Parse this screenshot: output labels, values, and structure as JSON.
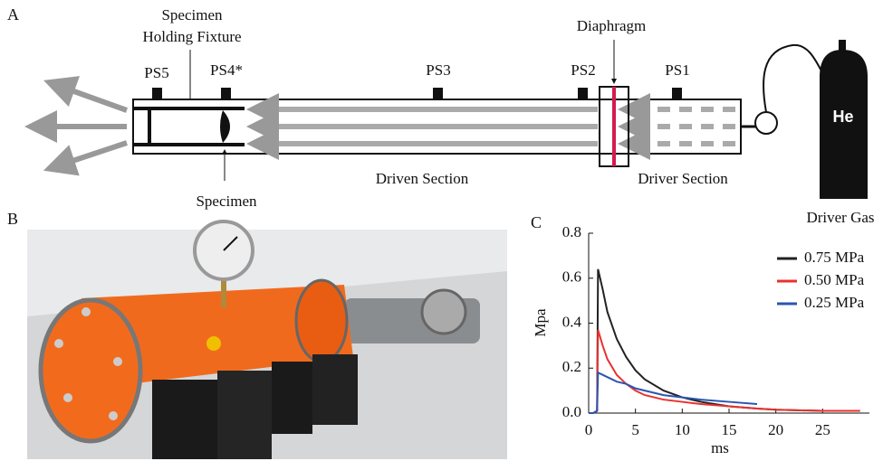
{
  "panel_a": {
    "label": "A",
    "fixture_label": [
      "Specimen",
      "Holding Fixture"
    ],
    "sensors": [
      "PS5",
      "PS4*",
      "PS3",
      "PS2",
      "PS1"
    ],
    "diaphragm": "Diaphragm",
    "specimen": "Specimen",
    "driven_section": "Driven Section",
    "driver_section": "Driver Section",
    "gas": "He",
    "driver_gas": "Driver Gas"
  },
  "panel_b": {
    "label": "B"
  },
  "chart_data": {
    "type": "line",
    "panel_label": "C",
    "x_label": "ms",
    "y_label": "Mpa",
    "x": [
      0,
      0.5,
      0.9,
      1,
      1.5,
      2,
      3,
      4,
      5,
      6,
      8,
      10,
      12,
      15,
      18,
      20,
      25,
      29
    ],
    "series": [
      {
        "name": "0.75 MPa",
        "color": "#222222",
        "values": [
          0,
          0,
          0.01,
          0.64,
          0.55,
          0.45,
          0.33,
          0.25,
          0.19,
          0.15,
          0.1,
          0.07,
          0.05,
          0.03,
          0.02,
          0.015,
          0.01,
          0.01
        ]
      },
      {
        "name": "0.50 MPa",
        "color": "#e8322f",
        "values": [
          0,
          0,
          0.01,
          0.37,
          0.3,
          0.24,
          0.17,
          0.13,
          0.1,
          0.08,
          0.06,
          0.05,
          0.04,
          0.03,
          0.02,
          0.015,
          0.01,
          0.01
        ]
      },
      {
        "name": "0.25 MPa",
        "color": "#2b55b0",
        "values": [
          0,
          0,
          0.01,
          0.18,
          0.17,
          0.16,
          0.14,
          0.13,
          0.11,
          0.1,
          0.08,
          0.07,
          0.06,
          0.05,
          0.04,
          null,
          null,
          null
        ]
      }
    ],
    "xlim": [
      0,
      30
    ],
    "xticks": [
      0,
      5,
      10,
      15,
      20,
      25
    ],
    "ylim": [
      0,
      0.8
    ],
    "yticks": [
      {
        "value": 0,
        "label": "0.0"
      },
      {
        "value": 0.2,
        "label": "0.2"
      },
      {
        "value": 0.4,
        "label": "0.4"
      },
      {
        "value": 0.6,
        "label": "0.6"
      },
      {
        "value": 0.8,
        "label": "0.8"
      }
    ],
    "legend": "upper right"
  }
}
